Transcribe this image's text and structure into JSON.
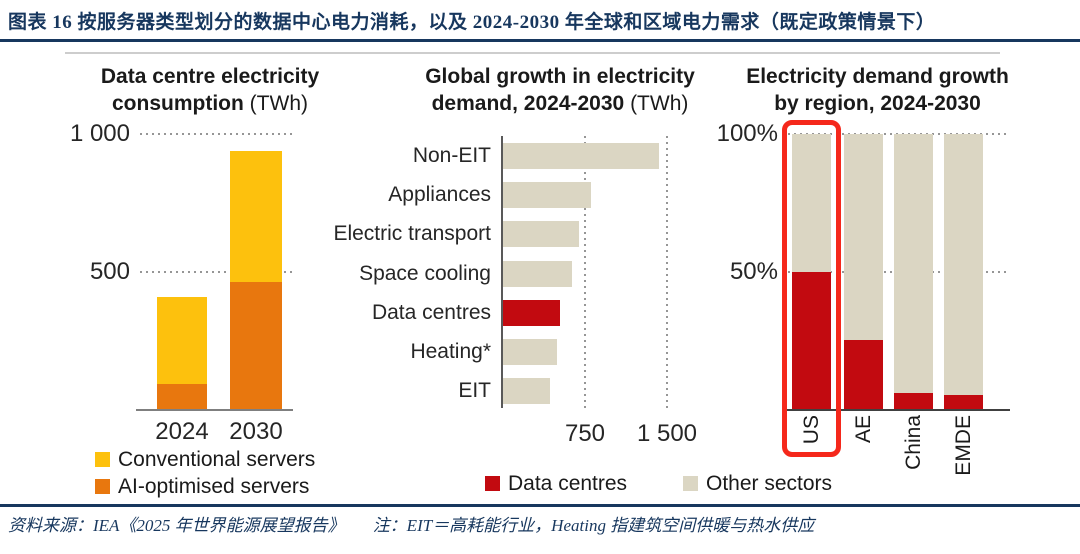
{
  "header": {
    "title": "图表 16  按服务器类型划分的数据中心电力消耗，以及 2024-2030 年全球和区域电力需求（既定政策情景下）"
  },
  "colors": {
    "navy": "#17375E",
    "yellow": "#FDC10D",
    "orange": "#E8770E",
    "red": "#C20A10",
    "beige": "#DBD6C3",
    "highlight_box_red": "#F5281B",
    "grid_dot_gray": "#969696",
    "axis_gray": "#595959",
    "baseline_gray": "#7F7F7F",
    "text_dark": "#1A1A1A"
  },
  "chart_data": [
    {
      "type": "bar",
      "stacked": true,
      "title_lines": [
        "Data centre electricity",
        "consumption"
      ],
      "unit": "(TWh)",
      "categories": [
        "2024",
        "2030"
      ],
      "series": [
        {
          "name": "Conventional servers",
          "color": "yellow",
          "values": [
            315,
            475
          ]
        },
        {
          "name": "AI-optimised servers",
          "color": "orange",
          "values": [
            95,
            465
          ]
        }
      ],
      "ylim": [
        0,
        1000
      ],
      "yticks": [
        {
          "label": "500",
          "value": 500
        },
        {
          "label": "1 000",
          "value": 1000
        }
      ],
      "grid": "dotted-horizontal",
      "legend_position": "bottom-left"
    },
    {
      "type": "bar",
      "orientation": "horizontal",
      "title_lines": [
        "Global growth in electricity",
        "demand, 2024-2030"
      ],
      "unit": "(TWh)",
      "categories": [
        "Non-EIT",
        "Appliances",
        "Electric transport",
        "Space cooling",
        "Data centres",
        "Heating*",
        "EIT"
      ],
      "values": [
        1430,
        805,
        695,
        630,
        520,
        495,
        430
      ],
      "highlight_category": "Data centres",
      "xlim": [
        0,
        1870
      ],
      "xticks": [
        {
          "label": "750",
          "value": 750
        },
        {
          "label": "1 500",
          "value": 1500
        }
      ],
      "grid": "dotted-vertical"
    },
    {
      "type": "bar",
      "stacked": true,
      "percent": true,
      "title_lines": [
        "Electricity demand growth",
        "by region, 2024-2030"
      ],
      "categories": [
        "US",
        "AE",
        "China",
        "EMDE"
      ],
      "series": [
        {
          "name": "Data centres",
          "color": "red",
          "values": [
            50,
            25,
            6,
            5
          ]
        },
        {
          "name": "Other sectors",
          "color": "beige",
          "values": [
            50,
            75,
            94,
            95
          ]
        }
      ],
      "ylim": [
        0,
        100
      ],
      "yticks": [
        {
          "label": "50%",
          "value": 50
        },
        {
          "label": "100%",
          "value": 100
        }
      ],
      "grid": "dotted-horizontal",
      "annotation": {
        "type": "highlight-box",
        "target": "US"
      }
    }
  ],
  "legend_chart1": [
    {
      "label": "Conventional servers",
      "color": "yellow"
    },
    {
      "label": "AI-optimised servers",
      "color": "orange"
    }
  ],
  "legend_shared": [
    {
      "label": "Data centres",
      "color": "red"
    },
    {
      "label": "Other sectors",
      "color": "beige"
    }
  ],
  "footer": {
    "source": "资料来源：IEA《2025 年世界能源展望报告》",
    "note": "注：EIT＝高耗能行业，Heating 指建筑空间供暖与热水供应"
  }
}
